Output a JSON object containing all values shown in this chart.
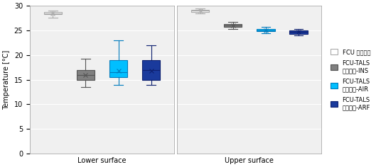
{
  "lower_surface": {
    "FCU": {
      "q1": 28.3,
      "median": 28.5,
      "q3": 28.8,
      "whislo": 27.6,
      "whishi": 29.0,
      "mean": 28.5,
      "fliers": []
    },
    "INS": {
      "q1": 15.0,
      "median": 16.0,
      "q3": 17.0,
      "whislo": 13.5,
      "whishi": 19.3,
      "mean": 16.0,
      "fliers": []
    },
    "AIR": {
      "q1": 15.5,
      "median": 16.5,
      "q3": 19.0,
      "whislo": 14.0,
      "whishi": 23.0,
      "mean": 16.8,
      "fliers": []
    },
    "ARF": {
      "q1": 15.0,
      "median": 17.0,
      "q3": 19.0,
      "whislo": 14.0,
      "whishi": 22.0,
      "mean": 16.8,
      "fliers": []
    }
  },
  "upper_surface": {
    "FCU": {
      "q1": 28.8,
      "median": 29.0,
      "q3": 29.2,
      "whislo": 28.4,
      "whishi": 29.5,
      "mean": 29.0,
      "fliers": []
    },
    "INS": {
      "q1": 25.7,
      "median": 26.0,
      "q3": 26.3,
      "whislo": 25.3,
      "whishi": 26.7,
      "mean": 26.0,
      "fliers": []
    },
    "AIR": {
      "q1": 24.8,
      "median": 25.0,
      "q3": 25.3,
      "whislo": 24.4,
      "whishi": 25.7,
      "mean": 25.0,
      "fliers": []
    },
    "ARF": {
      "q1": 24.3,
      "median": 24.7,
      "q3": 25.0,
      "whislo": 24.0,
      "whishi": 25.3,
      "mean": 24.7,
      "fliers": []
    }
  },
  "colors": {
    "FCU": "#ffffff",
    "INS": "#808080",
    "AIR": "#00bfff",
    "ARF": "#1a3a9c"
  },
  "edge_colors": {
    "FCU": "#aaaaaa",
    "INS": "#555555",
    "AIR": "#007bbd",
    "ARF": "#0d2070"
  },
  "ylabel": "Temperature [°C]",
  "ylim": [
    0,
    30
  ],
  "yticks": [
    0,
    5,
    10,
    15,
    20,
    25,
    30
  ],
  "subplot_labels": [
    "Lower surface",
    "Upper surface"
  ],
  "legend_labels": [
    "FCU 단독운전",
    "FCU-TALS\n병용운전-INS",
    "FCU-TALS\n병용운전-AIR",
    "FCU-TALS\n병용운전-ARF"
  ],
  "legend_keys": [
    "FCU",
    "INS",
    "AIR",
    "ARF"
  ],
  "surfaces": [
    "lower_surface",
    "upper_surface"
  ]
}
